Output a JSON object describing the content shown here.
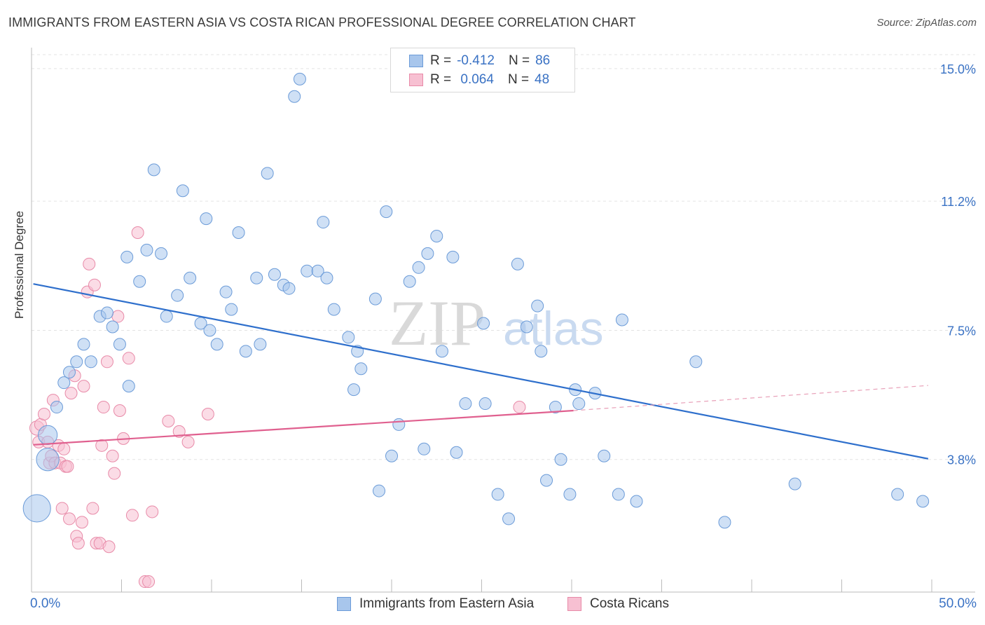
{
  "title": "IMMIGRANTS FROM EASTERN ASIA VS COSTA RICAN PROFESSIONAL DEGREE CORRELATION CHART",
  "source": "Source: ZipAtlas.com",
  "watermark": {
    "zip": "ZIP",
    "atlas": "atlas"
  },
  "legend": {
    "rows": [
      {
        "r_label": "R =",
        "r_value": "-0.412",
        "n_label": "N =",
        "n_value": "86",
        "color": "#a8c6ec",
        "border": "#6b9bd8"
      },
      {
        "r_label": "R =",
        "r_value": " 0.064",
        "n_label": "N =",
        "n_value": "48",
        "color": "#f7c0d2",
        "border": "#e88aa8"
      }
    ]
  },
  "bottom_legend": [
    {
      "label": "Immigrants from Eastern Asia",
      "color": "#a8c6ec",
      "border": "#6b9bd8"
    },
    {
      "label": "Costa Ricans",
      "color": "#f7c0d2",
      "border": "#e88aa8"
    }
  ],
  "x_axis": {
    "min_label": "0.0%",
    "max_label": "50.0%"
  },
  "chart_data": {
    "type": "scatter",
    "title": "IMMIGRANTS FROM EASTERN ASIA VS COSTA RICAN PROFESSIONAL DEGREE CORRELATION CHART",
    "xlabel": "",
    "ylabel": "Professional Degree",
    "xlim": [
      0,
      50
    ],
    "ylim": [
      0,
      15.4
    ],
    "y_ticks": [
      {
        "value": 3.8,
        "label": "3.8%"
      },
      {
        "value": 7.5,
        "label": "7.5%"
      },
      {
        "value": 11.2,
        "label": "11.2%"
      },
      {
        "value": 15.0,
        "label": "15.0%"
      }
    ],
    "x_tick_values": [
      0,
      5,
      10,
      15,
      20,
      25,
      30,
      35,
      40,
      45,
      50
    ],
    "grid": "horizontal dashed",
    "series": [
      {
        "name": "Immigrants from Eastern Asia",
        "color": "#a8c6ec",
        "stroke": "#6b9bd8",
        "trend": {
          "x0": 0.1,
          "y0": 8.83,
          "x1": 49.8,
          "y1": 3.82,
          "color": "#2e6fcc"
        },
        "points": [
          [
            0.3,
            2.4,
            2.3
          ],
          [
            0.9,
            3.8,
            1.9
          ],
          [
            0.9,
            4.5,
            1.6
          ],
          [
            1.4,
            5.3,
            1
          ],
          [
            1.8,
            6.0,
            1
          ],
          [
            2.1,
            6.3,
            1
          ],
          [
            2.5,
            6.6,
            1
          ],
          [
            2.9,
            7.1,
            1
          ],
          [
            3.3,
            6.6,
            1
          ],
          [
            3.8,
            7.9,
            1
          ],
          [
            4.2,
            8.0,
            1
          ],
          [
            4.5,
            7.6,
            1
          ],
          [
            4.9,
            7.1,
            1
          ],
          [
            5.4,
            5.9,
            1
          ],
          [
            5.3,
            9.6,
            1
          ],
          [
            6.0,
            8.9,
            1
          ],
          [
            6.4,
            9.8,
            1
          ],
          [
            6.8,
            12.1,
            1
          ],
          [
            7.2,
            9.7,
            1
          ],
          [
            7.5,
            7.9,
            1
          ],
          [
            8.1,
            8.5,
            1
          ],
          [
            8.4,
            11.5,
            1
          ],
          [
            8.8,
            9.0,
            1
          ],
          [
            9.4,
            7.7,
            1
          ],
          [
            9.7,
            10.7,
            1
          ],
          [
            9.9,
            7.5,
            1
          ],
          [
            10.3,
            7.1,
            1
          ],
          [
            10.8,
            8.6,
            1
          ],
          [
            11.1,
            8.1,
            1
          ],
          [
            11.5,
            10.3,
            1
          ],
          [
            11.9,
            6.9,
            1
          ],
          [
            12.5,
            9.0,
            1
          ],
          [
            12.7,
            7.1,
            1
          ],
          [
            13.1,
            12.0,
            1
          ],
          [
            13.5,
            9.1,
            1
          ],
          [
            14.0,
            8.8,
            1
          ],
          [
            14.3,
            8.7,
            1
          ],
          [
            14.6,
            14.2,
            1
          ],
          [
            14.9,
            14.7,
            1
          ],
          [
            15.3,
            9.2,
            1
          ],
          [
            15.9,
            9.2,
            1
          ],
          [
            16.2,
            10.6,
            1
          ],
          [
            16.4,
            9.0,
            1
          ],
          [
            16.8,
            8.1,
            1
          ],
          [
            17.6,
            7.3,
            1
          ],
          [
            18.1,
            6.9,
            1
          ],
          [
            18.3,
            6.4,
            1
          ],
          [
            17.9,
            5.8,
            1
          ],
          [
            19.1,
            8.4,
            1
          ],
          [
            19.3,
            2.9,
            1
          ],
          [
            19.7,
            10.9,
            1
          ],
          [
            20.0,
            3.9,
            1
          ],
          [
            20.4,
            4.8,
            1
          ],
          [
            21.0,
            8.9,
            1
          ],
          [
            21.5,
            9.3,
            1
          ],
          [
            21.8,
            4.1,
            1
          ],
          [
            22.0,
            9.7,
            1
          ],
          [
            22.5,
            10.2,
            1
          ],
          [
            22.8,
            6.9,
            1
          ],
          [
            23.4,
            9.6,
            1
          ],
          [
            23.6,
            4.0,
            1
          ],
          [
            24.1,
            5.4,
            1
          ],
          [
            25.1,
            7.7,
            1
          ],
          [
            25.2,
            5.4,
            1
          ],
          [
            25.9,
            2.8,
            1
          ],
          [
            26.5,
            2.1,
            1
          ],
          [
            27.0,
            9.4,
            1
          ],
          [
            27.5,
            7.6,
            1
          ],
          [
            28.1,
            8.2,
            1
          ],
          [
            28.3,
            6.9,
            1
          ],
          [
            28.6,
            3.2,
            1
          ],
          [
            29.1,
            5.3,
            1
          ],
          [
            29.4,
            3.8,
            1
          ],
          [
            29.9,
            2.8,
            1
          ],
          [
            30.2,
            5.8,
            1
          ],
          [
            30.4,
            5.4,
            1
          ],
          [
            31.3,
            5.7,
            1
          ],
          [
            31.8,
            3.9,
            1
          ],
          [
            32.6,
            2.8,
            1
          ],
          [
            32.8,
            7.8,
            1
          ],
          [
            33.6,
            2.6,
            1
          ],
          [
            36.9,
            6.6,
            1
          ],
          [
            38.5,
            2.0,
            1
          ],
          [
            42.4,
            3.1,
            1
          ],
          [
            48.1,
            2.8,
            1
          ],
          [
            49.5,
            2.6,
            1
          ]
        ]
      },
      {
        "name": "Costa Ricans",
        "color": "#f7c0d2",
        "stroke": "#e88aa8",
        "trend": {
          "x0": 0.1,
          "y0": 4.22,
          "x1": 30.1,
          "y1": 5.2,
          "color": "#e0608f"
        },
        "trend_extension": {
          "x0": 30.1,
          "y0": 5.2,
          "x1": 49.8,
          "y1": 5.92
        },
        "points": [
          [
            0.3,
            4.7,
            1.2
          ],
          [
            0.4,
            4.3,
            1
          ],
          [
            0.5,
            4.8,
            1
          ],
          [
            0.7,
            5.1,
            1
          ],
          [
            0.9,
            4.3,
            1
          ],
          [
            1.0,
            3.7,
            1
          ],
          [
            1.1,
            3.9,
            1
          ],
          [
            1.2,
            5.5,
            1
          ],
          [
            1.3,
            3.7,
            1
          ],
          [
            1.5,
            4.2,
            1
          ],
          [
            1.6,
            3.7,
            1
          ],
          [
            1.7,
            2.4,
            1
          ],
          [
            1.8,
            4.1,
            1
          ],
          [
            1.9,
            3.6,
            1
          ],
          [
            2.0,
            3.6,
            1
          ],
          [
            2.1,
            2.1,
            1
          ],
          [
            2.2,
            5.7,
            1
          ],
          [
            2.4,
            6.2,
            1
          ],
          [
            2.5,
            1.6,
            1
          ],
          [
            2.6,
            1.4,
            1
          ],
          [
            2.8,
            2.0,
            1
          ],
          [
            2.9,
            5.9,
            1
          ],
          [
            3.1,
            8.6,
            1
          ],
          [
            3.2,
            9.4,
            1
          ],
          [
            3.4,
            2.4,
            1
          ],
          [
            3.5,
            8.8,
            1
          ],
          [
            3.6,
            1.4,
            1
          ],
          [
            3.8,
            1.4,
            1
          ],
          [
            3.9,
            4.2,
            1
          ],
          [
            4.0,
            5.3,
            1
          ],
          [
            4.2,
            6.6,
            1
          ],
          [
            4.3,
            1.3,
            1
          ],
          [
            4.5,
            3.9,
            1
          ],
          [
            4.6,
            3.4,
            1
          ],
          [
            4.8,
            7.9,
            1
          ],
          [
            4.9,
            5.2,
            1
          ],
          [
            5.1,
            4.4,
            1
          ],
          [
            5.4,
            6.7,
            1
          ],
          [
            5.6,
            2.2,
            1
          ],
          [
            5.9,
            10.3,
            1
          ],
          [
            6.3,
            0.3,
            1
          ],
          [
            6.5,
            0.3,
            1
          ],
          [
            6.7,
            2.3,
            1
          ],
          [
            7.6,
            4.9,
            1
          ],
          [
            8.2,
            4.6,
            1
          ],
          [
            8.7,
            4.3,
            1
          ],
          [
            9.8,
            5.1,
            1
          ],
          [
            27.1,
            5.3,
            1
          ]
        ]
      }
    ]
  }
}
